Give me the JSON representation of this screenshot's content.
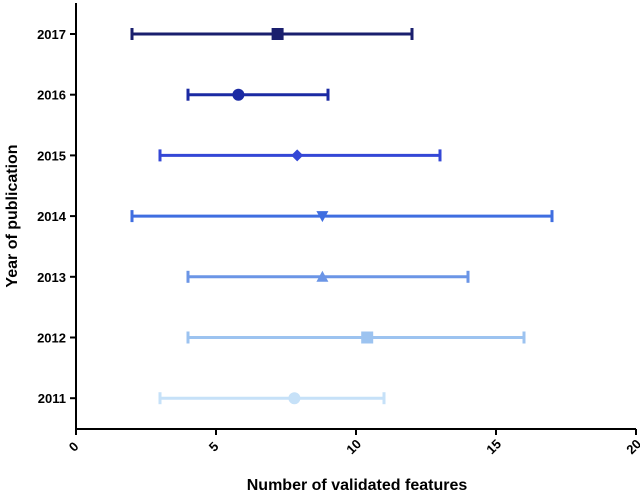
{
  "chart_data": {
    "type": "scatter",
    "subtype": "error-bar",
    "xlabel": "Number of validated features",
    "ylabel": "Year of publication",
    "xlim": [
      0,
      20
    ],
    "xticks": [
      "0",
      "5",
      "10",
      "15",
      "20"
    ],
    "grid": false,
    "legend": "none",
    "categories": [
      "2017",
      "2016",
      "2015",
      "2014",
      "2013",
      "2012",
      "2011"
    ],
    "series": [
      {
        "category": "2017",
        "mean": 7.2,
        "low": 2,
        "high": 12,
        "marker": "square",
        "color": "#1a1f6e"
      },
      {
        "category": "2016",
        "mean": 5.8,
        "low": 4,
        "high": 9,
        "marker": "circle",
        "color": "#1b2aa3"
      },
      {
        "category": "2015",
        "mean": 7.9,
        "low": 3,
        "high": 13,
        "marker": "diamond",
        "color": "#3447d6"
      },
      {
        "category": "2014",
        "mean": 8.8,
        "low": 2,
        "high": 17,
        "marker": "triangle-down",
        "color": "#3f6ee0"
      },
      {
        "category": "2013",
        "mean": 8.8,
        "low": 4,
        "high": 14,
        "marker": "triangle-up",
        "color": "#6b95e6"
      },
      {
        "category": "2012",
        "mean": 10.4,
        "low": 4,
        "high": 16,
        "marker": "square",
        "color": "#9cc3f0"
      },
      {
        "category": "2011",
        "mean": 7.8,
        "low": 3,
        "high": 11,
        "marker": "circle",
        "color": "#c6e1f8"
      }
    ]
  }
}
